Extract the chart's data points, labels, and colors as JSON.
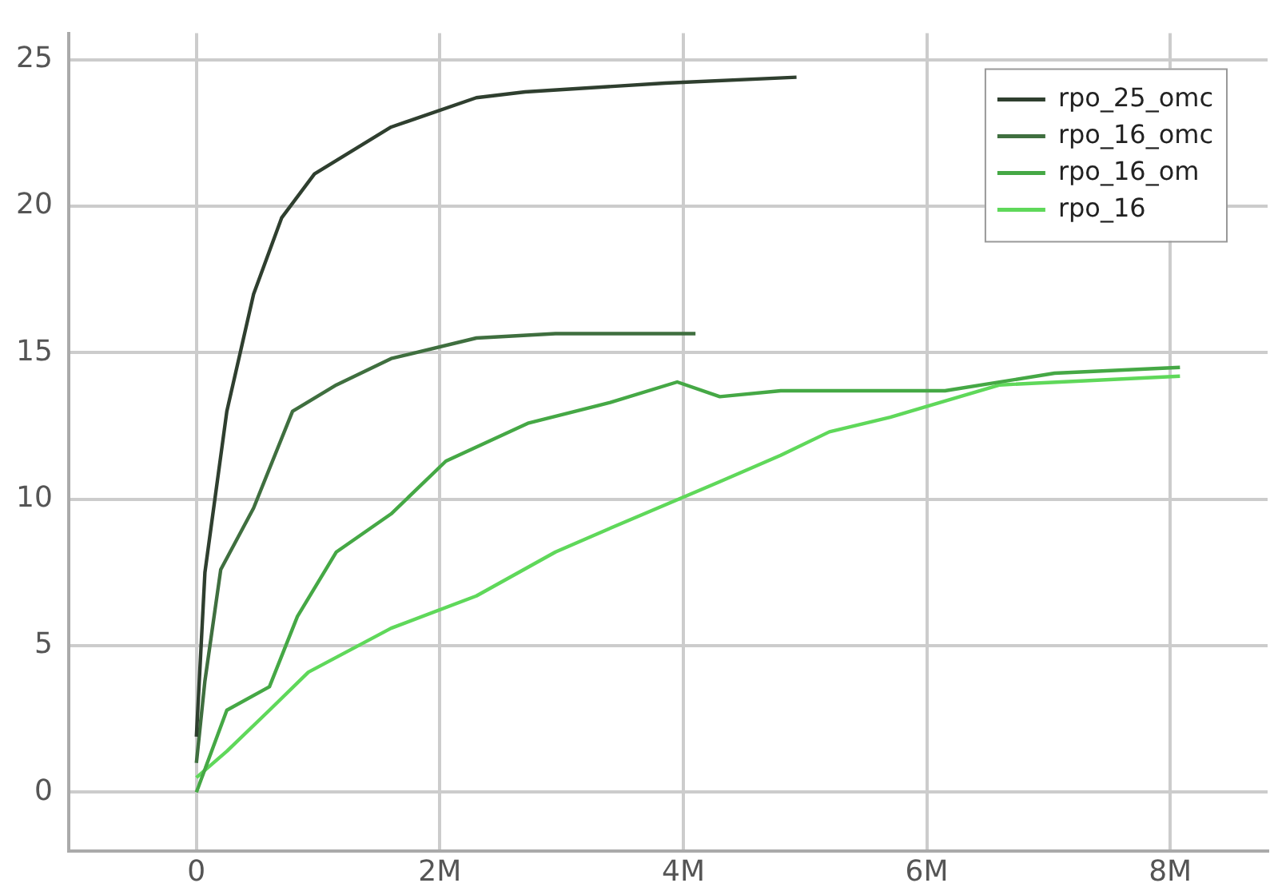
{
  "chart_data": {
    "type": "line",
    "xlim": [
      -1050000,
      8800000
    ],
    "ylim": [
      -2,
      25.9
    ],
    "xticks": [
      0,
      {
        "value": 2000000,
        "label": "2M"
      },
      {
        "value": 4000000,
        "label": "4M"
      },
      {
        "value": 6000000,
        "label": "6M"
      },
      {
        "value": 8000000,
        "label": "8M"
      }
    ],
    "yticks": [
      0,
      5,
      10,
      15,
      20,
      25
    ],
    "grid": true,
    "legend": "top right",
    "marker": "none",
    "line_style": "solid",
    "series": [
      {
        "name": "rpo_25_omc",
        "color": "#2f3f2f",
        "x": [
          0,
          70000,
          250000,
          470000,
          700000,
          970000,
          1600000,
          2300000,
          2700000,
          3850000,
          4930000
        ],
        "values": [
          1.9,
          7.5,
          13,
          17,
          19.6,
          21.1,
          22.7,
          23.7,
          23.9,
          24.2,
          24.4
        ]
      },
      {
        "name": "rpo_16_omc",
        "color": "#3f6f3f",
        "x": [
          0,
          70000,
          200000,
          470000,
          790000,
          1150000,
          1600000,
          2300000,
          2950000,
          4100000
        ],
        "values": [
          1,
          3.8,
          7.6,
          9.7,
          13,
          13.9,
          14.8,
          15.5,
          15.65,
          15.65
        ]
      },
      {
        "name": "rpo_16_om",
        "color": "#45a845",
        "x": [
          0,
          250000,
          600000,
          830000,
          1150000,
          1600000,
          2050000,
          2730000,
          3400000,
          3950000,
          4300000,
          4800000,
          6150000,
          7050000,
          8080000
        ],
        "values": [
          0,
          2.8,
          3.6,
          6,
          8.2,
          9.5,
          11.3,
          12.6,
          13.3,
          14,
          13.5,
          13.7,
          13.7,
          14.3,
          14.5
        ]
      },
      {
        "name": "rpo_16",
        "color": "#5fd85a",
        "x": [
          0,
          250000,
          600000,
          920000,
          1600000,
          2300000,
          2950000,
          3450000,
          4300000,
          4800000,
          5200000,
          5700000,
          6600000,
          8080000
        ],
        "values": [
          0.5,
          1.4,
          2.8,
          4.1,
          5.6,
          6.7,
          8.2,
          9.1,
          10.6,
          11.5,
          12.3,
          12.8,
          13.9,
          14.2
        ]
      }
    ]
  }
}
